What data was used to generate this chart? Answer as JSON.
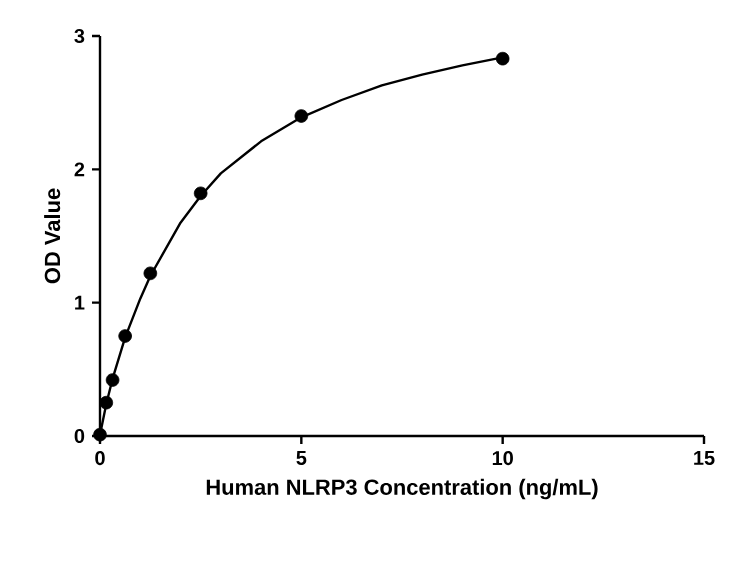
{
  "chart_data": {
    "type": "scatter",
    "xlabel": "Human NLRP3 Concentration (ng/mL)",
    "ylabel": "OD Value",
    "xlim": [
      0,
      15
    ],
    "xticks": [
      0,
      5,
      10,
      15
    ],
    "ylim": [
      0,
      3
    ],
    "yticks": [
      0,
      1,
      2,
      3
    ],
    "grid": false,
    "series": [
      {
        "marker": "circle",
        "color": "#000000",
        "x": [
          0,
          0.156,
          0.3125,
          0.625,
          1.25,
          2.5,
          5,
          10
        ],
        "values": [
          0.01,
          0.25,
          0.42,
          0.75,
          1.22,
          1.82,
          2.4,
          2.83
        ]
      },
      {
        "type": "line",
        "marker": "none",
        "color": "#000000",
        "x": [
          0,
          0.156,
          0.3125,
          0.625,
          1,
          1.25,
          2,
          2.5,
          3,
          4,
          5,
          6,
          7,
          8,
          9,
          10
        ],
        "values": [
          0.01,
          0.24,
          0.43,
          0.74,
          1.03,
          1.2,
          1.6,
          1.8,
          1.97,
          2.21,
          2.39,
          2.52,
          2.63,
          2.71,
          2.78,
          2.84
        ]
      }
    ]
  }
}
